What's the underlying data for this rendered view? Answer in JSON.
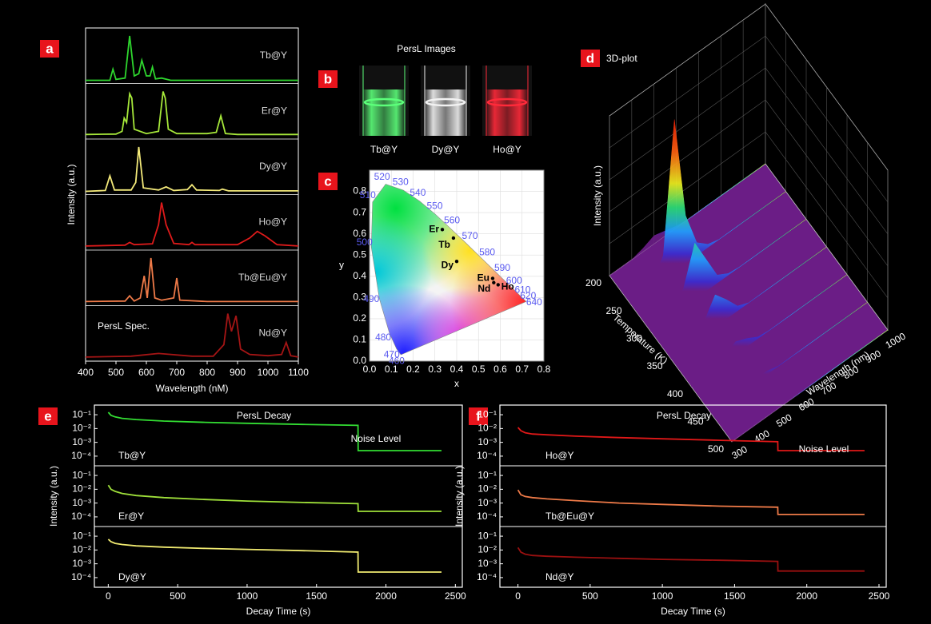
{
  "chart_data": [
    {
      "panel": "a",
      "type": "line",
      "x_label": "Wavelength (nM)",
      "y_label": "Intensity (a.u.)",
      "annotation": "PersL Spec.",
      "xlim": [
        400,
        1100
      ],
      "xticks": [
        400,
        500,
        600,
        700,
        800,
        900,
        1000,
        1100
      ],
      "ylim": [
        0,
        1
      ],
      "series": [
        {
          "name": "Tb@Y",
          "color": "#2ed62e",
          "x": [
            400,
            480,
            490,
            500,
            530,
            545,
            560,
            575,
            585,
            600,
            612,
            620,
            630,
            650,
            680,
            1100
          ],
          "values": [
            0,
            0,
            0.25,
            0.02,
            0.05,
            1,
            0.1,
            0.15,
            0.45,
            0.1,
            0.1,
            0.3,
            0.03,
            0.05,
            0,
            0
          ]
        },
        {
          "name": "Er@Y",
          "color": "#a6e83a",
          "x": [
            400,
            500,
            520,
            527,
            535,
            545,
            552,
            560,
            600,
            640,
            655,
            662,
            672,
            700,
            800,
            830,
            845,
            860,
            900,
            1100
          ],
          "values": [
            0.03,
            0.04,
            0.1,
            0.4,
            0.3,
            0.95,
            0.85,
            0.15,
            0.05,
            0.1,
            1,
            0.85,
            0.15,
            0.05,
            0.05,
            0.08,
            0.45,
            0.05,
            0.03,
            0.03
          ]
        },
        {
          "name": "Dy@Y",
          "color": "#f4ea7a",
          "x": [
            400,
            465,
            480,
            495,
            550,
            565,
            575,
            590,
            640,
            665,
            690,
            735,
            750,
            765,
            840,
            850,
            870,
            1100
          ],
          "values": [
            0,
            0.02,
            0.35,
            0.03,
            0.03,
            0.2,
            1,
            0.08,
            0.03,
            0.1,
            0.02,
            0.04,
            0.15,
            0.03,
            0.02,
            0.05,
            0.01,
            0.01
          ]
        },
        {
          "name": "Ho@Y",
          "color": "#dd1a1a",
          "x": [
            400,
            530,
            545,
            560,
            620,
            640,
            650,
            665,
            690,
            740,
            750,
            760,
            900,
            940,
            965,
            990,
            1030,
            1100
          ],
          "values": [
            0.02,
            0.04,
            0.1,
            0.05,
            0.07,
            0.5,
            1,
            0.5,
            0.08,
            0.05,
            0.1,
            0.05,
            0.05,
            0.2,
            0.35,
            0.25,
            0.05,
            0.02
          ]
        },
        {
          "name": "Tb@Eu@Y",
          "color": "#ee7a48",
          "x": [
            400,
            530,
            545,
            560,
            580,
            593,
            603,
            615,
            628,
            650,
            690,
            700,
            710,
            800,
            1100
          ],
          "values": [
            0.02,
            0.03,
            0.15,
            0.03,
            0.1,
            0.6,
            0.1,
            1,
            0.1,
            0.05,
            0.1,
            0.55,
            0.05,
            0.02,
            0.02
          ]
        },
        {
          "name": "Nd@Y",
          "color": "#a51515",
          "x": [
            400,
            550,
            640,
            750,
            820,
            855,
            868,
            880,
            895,
            910,
            940,
            1000,
            1045,
            1060,
            1075,
            1100
          ],
          "values": [
            0.02,
            0.04,
            0.1,
            0.04,
            0.04,
            0.3,
            1,
            0.6,
            0.95,
            0.2,
            0.08,
            0.05,
            0.08,
            0.35,
            0.05,
            0.02
          ]
        }
      ]
    },
    {
      "panel": "b",
      "type": "image",
      "title": "PersL Images",
      "categories": [
        "Tb@Y",
        "Dy@Y",
        "Ho@Y"
      ],
      "colors": [
        "#5cff7a",
        "#f2f2f2",
        "#ff2a3a"
      ]
    },
    {
      "panel": "c",
      "type": "scatter",
      "x_label": "x",
      "y_label": "y",
      "grid": true,
      "color": "#000000",
      "categories": [
        "Er",
        "Tb",
        "Dy",
        "Eu",
        "Nd",
        "Ho"
      ],
      "x": [
        0.334,
        0.385,
        0.4,
        0.565,
        0.57,
        0.59
      ],
      "y": [
        0.62,
        0.58,
        0.47,
        0.39,
        0.37,
        0.36
      ],
      "xlim": [
        0,
        0.8
      ],
      "ylim": [
        0,
        0.9
      ],
      "xticks": [
        {
          "value": 0,
          "label": "0.0"
        },
        0.1,
        0.2,
        0.3,
        0.4,
        0.5,
        0.6,
        0.7,
        0.8
      ],
      "yticks": [
        {
          "value": 0,
          "label": "0.0"
        },
        0.1,
        0.2,
        0.3,
        0.4,
        0.5,
        0.6,
        0.7,
        0.8
      ],
      "locus": {
        "labels": [
          460,
          470,
          480,
          490,
          500,
          510,
          520,
          530,
          540,
          550,
          560,
          570,
          580,
          590,
          600,
          610,
          620,
          640
        ],
        "x": [
          0.144,
          0.124,
          0.091,
          0.045,
          0.008,
          0.014,
          0.074,
          0.155,
          0.23,
          0.302,
          0.373,
          0.444,
          0.512,
          0.575,
          0.627,
          0.666,
          0.691,
          0.719
        ],
        "y": [
          0.03,
          0.058,
          0.133,
          0.295,
          0.538,
          0.75,
          0.834,
          0.806,
          0.754,
          0.692,
          0.624,
          0.555,
          0.487,
          0.424,
          0.372,
          0.334,
          0.308,
          0.281
        ]
      }
    },
    {
      "panel": "d",
      "type": "surface",
      "title": "3D-plot",
      "x_label": "Wavelength (nm)",
      "y_label": "Temperature (K)",
      "z_label": "Intensity (a.u.)",
      "x": [
        300,
        350,
        400,
        450,
        500,
        550,
        600,
        650,
        700,
        750,
        800,
        850,
        900,
        950,
        1000
      ],
      "y": [
        200,
        250,
        300,
        350,
        400,
        450,
        500
      ],
      "xlim": [
        300,
        1000
      ],
      "xticks": [
        300,
        400,
        500,
        600,
        700,
        800,
        900,
        1000
      ],
      "ylim": [
        200,
        500
      ],
      "yticks": [
        200,
        250,
        300,
        350,
        400,
        450,
        500
      ],
      "zlim": [
        0,
        1
      ],
      "values": [
        [
          0,
          0,
          0,
          0.02,
          0.05,
          0.03,
          0.01,
          0,
          0,
          0,
          0,
          0,
          0,
          0,
          0
        ],
        [
          0,
          0,
          0.02,
          0.15,
          0.95,
          0.3,
          0.08,
          0.02,
          0,
          0,
          0,
          0,
          0,
          0,
          0
        ],
        [
          0,
          0,
          0.02,
          0.12,
          0.35,
          0.2,
          0.05,
          0.01,
          0,
          0,
          0,
          0,
          0,
          0,
          0
        ],
        [
          0,
          0,
          0.01,
          0.08,
          0.2,
          0.12,
          0.03,
          0,
          0,
          0,
          0,
          0,
          0,
          0,
          0
        ],
        [
          0,
          0,
          0,
          0.04,
          0.08,
          0.05,
          0.01,
          0,
          0,
          0,
          0,
          0,
          0,
          0,
          0
        ],
        [
          0,
          0,
          0,
          0.01,
          0.02,
          0.02,
          0,
          0,
          0,
          0,
          0,
          0,
          0,
          0,
          0
        ],
        [
          0,
          0,
          0,
          0,
          0,
          0,
          0,
          0,
          0,
          0,
          0,
          0,
          0,
          0,
          0
        ]
      ]
    },
    {
      "panel": "e",
      "type": "line",
      "log_y": true,
      "x_label": "Decay Time (s)",
      "y_label": "Intensity (a.u.)",
      "annotations": [
        "PersL Decay",
        "Noise Level"
      ],
      "x": [
        0,
        20,
        50,
        100,
        200,
        400,
        700,
        1000,
        1400,
        1799,
        1800,
        2400
      ],
      "xlim": [
        -100,
        2550
      ],
      "xticks": [
        0,
        500,
        1000,
        1500,
        2000,
        2500
      ],
      "ylim": [
        2e-05,
        0.5
      ],
      "yticks": [
        {
          "value": 0.0001,
          "label": "10⁻⁴"
        },
        {
          "value": 0.001,
          "label": "10⁻³"
        },
        {
          "value": 0.01,
          "label": "10⁻²"
        },
        {
          "value": 0.1,
          "label": "10⁻¹"
        }
      ],
      "series": [
        {
          "name": "Tb@Y",
          "color": "#33dd33",
          "values": [
            0.15,
            0.09,
            0.07,
            0.055,
            0.045,
            0.035,
            0.028,
            0.024,
            0.02,
            0.017,
            0.00025,
            0.00025
          ]
        },
        {
          "name": "Er@Y",
          "color": "#9fe03a",
          "values": [
            0.02,
            0.01,
            0.007,
            0.005,
            0.0035,
            0.0025,
            0.0018,
            0.0014,
            0.0011,
            0.0009,
            0.00025,
            0.00025
          ]
        },
        {
          "name": "Dy@Y",
          "color": "#f0ea70",
          "values": [
            0.06,
            0.04,
            0.03,
            0.025,
            0.02,
            0.016,
            0.013,
            0.011,
            0.009,
            0.007,
            0.00025,
            0.00025
          ]
        }
      ]
    },
    {
      "panel": "f",
      "type": "line",
      "log_y": true,
      "x_label": "Decay Time (s)",
      "y_label": "Intensity (a.u.)",
      "annotations": [
        "PersL Decay",
        "Noise Level"
      ],
      "x": [
        0,
        20,
        50,
        100,
        200,
        400,
        700,
        1000,
        1400,
        1799,
        1800,
        2400
      ],
      "xlim": [
        -125,
        2550
      ],
      "xticks": [
        0,
        500,
        1000,
        1500,
        2000,
        2500
      ],
      "ylim": [
        2e-05,
        0.5
      ],
      "yticks": [
        {
          "value": 0.0001,
          "label": "10⁻⁴"
        },
        {
          "value": 0.001,
          "label": "10⁻³"
        },
        {
          "value": 0.01,
          "label": "10⁻²"
        },
        {
          "value": 0.1,
          "label": "10⁻¹"
        }
      ],
      "series": [
        {
          "name": "Ho@Y",
          "color": "#e01818",
          "values": [
            0.012,
            0.007,
            0.005,
            0.004,
            0.0035,
            0.0028,
            0.0022,
            0.0018,
            0.0014,
            0.0011,
            0.00025,
            0.00025
          ]
        },
        {
          "name": "Tb@Eu@Y",
          "color": "#ee7a48",
          "values": [
            0.009,
            0.004,
            0.003,
            0.0025,
            0.002,
            0.0015,
            0.001,
            0.0008,
            0.0006,
            0.0005,
            0.00015,
            0.00015
          ]
        },
        {
          "name": "Nd@Y",
          "color": "#9a1010",
          "values": [
            0.015,
            0.007,
            0.005,
            0.004,
            0.0035,
            0.003,
            0.0025,
            0.0021,
            0.0018,
            0.0015,
            0.0003,
            0.0003
          ]
        }
      ]
    }
  ]
}
